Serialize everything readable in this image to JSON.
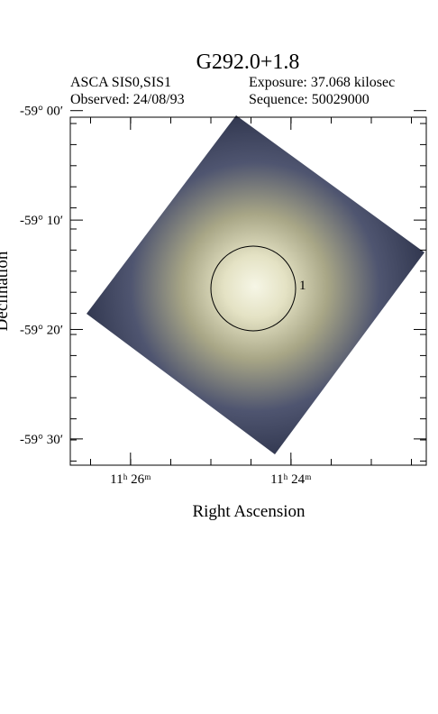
{
  "chart_data": {
    "type": "image",
    "title": "G292.0+1.8",
    "instrument": "ASCA SIS0,SIS1",
    "exposure": "Exposure: 37.068 kilosec",
    "observed": "Observed: 24/08/93",
    "sequence": "Sequence: 50029000",
    "xlabel": "Right Ascension",
    "ylabel": "Declination",
    "region_label": "1",
    "xlim": [
      11.4458,
      11.3719
    ],
    "xticks": [
      {
        "value": 11.4333,
        "label": "11ʰ 26ᵐ"
      },
      {
        "value": 11.4,
        "label": "11ʰ 24ᵐ"
      }
    ],
    "ylim": [
      -59.54,
      -59.01
    ],
    "yticks": [
      {
        "value": -59.0,
        "label": "-59° 00′"
      },
      {
        "value": -59.1667,
        "label": "-59° 10′"
      },
      {
        "value": -59.3333,
        "label": "-59° 20′"
      },
      {
        "value": -59.5,
        "label": "-59° 30′"
      }
    ]
  }
}
